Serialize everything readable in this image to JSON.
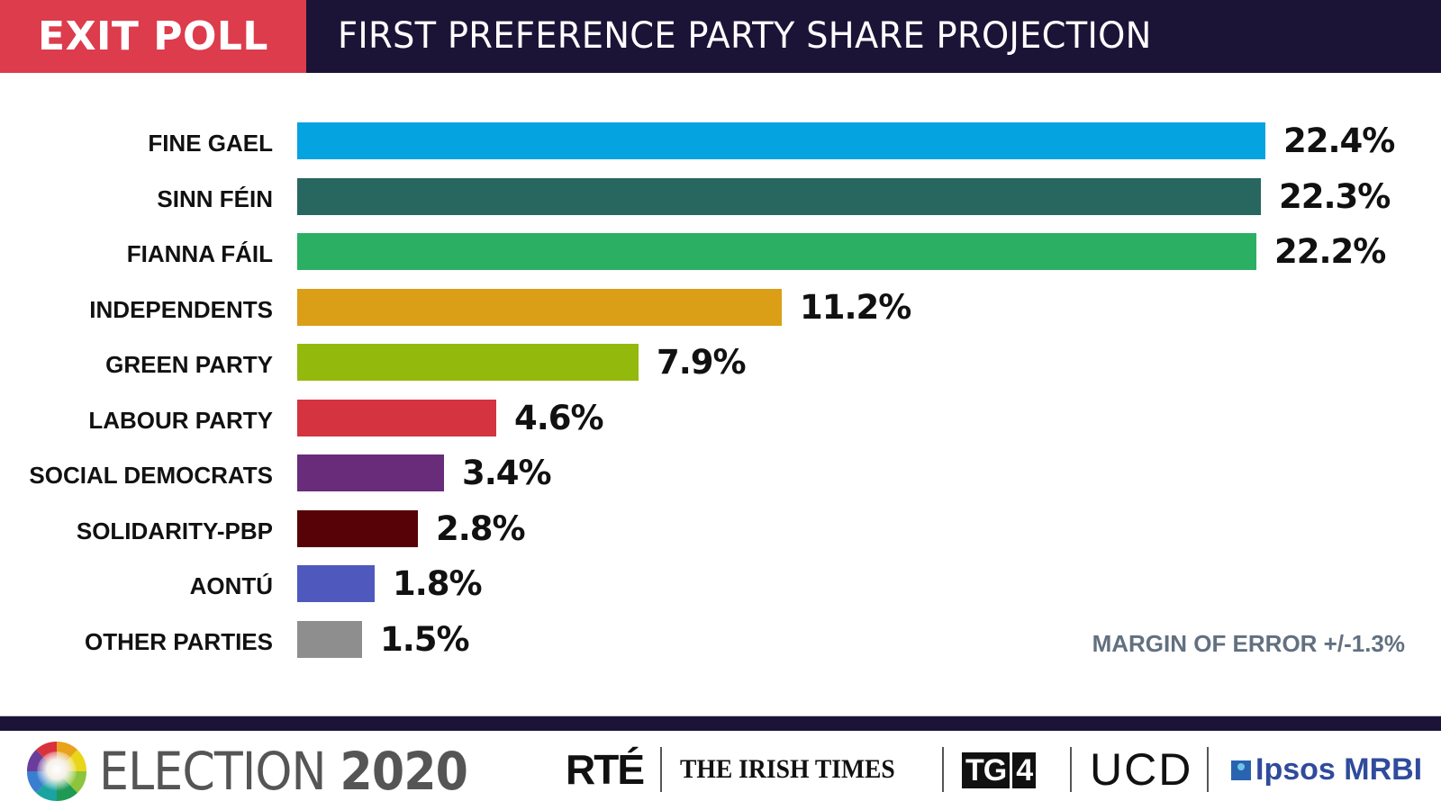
{
  "header": {
    "tag": "EXIT POLL",
    "title": "FIRST PREFERENCE PARTY SHARE PROJECTION",
    "tag_color": "#dc3c4c",
    "bar_color": "#1b1437"
  },
  "chart_data": {
    "type": "bar",
    "orientation": "horizontal",
    "title": "FIRST PREFERENCE PARTY SHARE PROJECTION",
    "xlabel": "",
    "ylabel": "",
    "xlim": [
      0,
      22.4
    ],
    "grid": false,
    "categories": [
      "FINE GAEL",
      "SINN FÉIN",
      "FIANNA FÁIL",
      "INDEPENDENTS",
      "GREEN PARTY",
      "LABOUR PARTY",
      "SOCIAL DEMOCRATS",
      "SOLIDARITY-PBP",
      "AONTÚ",
      "OTHER PARTIES"
    ],
    "values": [
      22.4,
      22.3,
      22.2,
      11.2,
      7.9,
      4.6,
      3.4,
      2.8,
      1.8,
      1.5
    ],
    "value_labels": [
      "22.4%",
      "22.3%",
      "22.2%",
      "11.2%",
      "7.9%",
      "4.6%",
      "3.4%",
      "2.8%",
      "1.8%",
      "1.5%"
    ],
    "colors": [
      "#05a3e0",
      "#286660",
      "#2bb063",
      "#db9e17",
      "#92b90c",
      "#d4333f",
      "#682c7a",
      "#560207",
      "#4f59bd",
      "#8e8e8e"
    ],
    "annotation": "MARGIN OF ERROR +/-1.3%"
  },
  "footer": {
    "election_word": "ELECTION",
    "election_year": "2020",
    "sponsors": {
      "rte": "RTÉ",
      "irish_times": "THE IRISH TIMES",
      "tg4_a": "TG",
      "tg4_b": "4",
      "ucd": "UCD",
      "ipsos": "Ipsos MRBI"
    }
  }
}
